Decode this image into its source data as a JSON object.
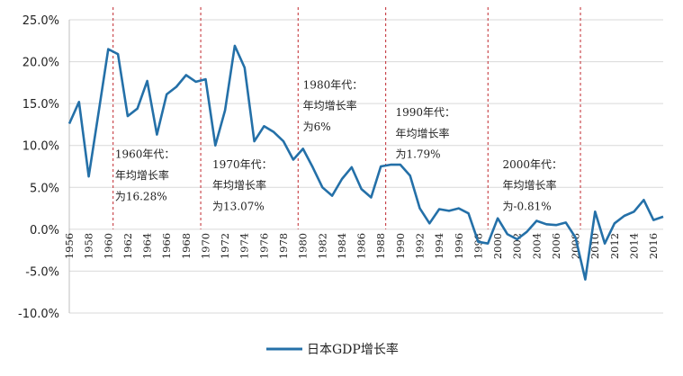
{
  "chart_data": {
    "type": "line",
    "title": "",
    "xlabel": "",
    "ylabel": "",
    "ylim": [
      -0.1,
      0.25
    ],
    "xlim": [
      1956,
      2017
    ],
    "ytick_labels": [
      "25.0%",
      "20.0%",
      "15.0%",
      "10.0%",
      "5.0%",
      "0.0%",
      "-5.0%",
      "-10.0%"
    ],
    "ytick_values": [
      0.25,
      0.2,
      0.15,
      0.1,
      0.05,
      0.0,
      -0.05,
      -0.1
    ],
    "xtick_labels": [
      "1956",
      "1958",
      "1960",
      "1962",
      "1964",
      "1966",
      "1968",
      "1970",
      "1972",
      "1974",
      "1976",
      "1978",
      "1980",
      "1982",
      "1984",
      "1986",
      "1988",
      "1990",
      "1992",
      "1994",
      "1996",
      "1998",
      "2000",
      "2002",
      "2004",
      "2006",
      "2008",
      "2010",
      "2012",
      "2014",
      "2016"
    ],
    "grid": "horizontal",
    "legend_position": "bottom-center",
    "colors": {
      "line": "#2470a8",
      "divider": "#c0272d",
      "grid": "#d9d9d9"
    },
    "series": [
      {
        "name": "日本GDP增长率",
        "x": [
          1956,
          1957,
          1958,
          1959,
          1960,
          1961,
          1962,
          1963,
          1964,
          1965,
          1966,
          1967,
          1968,
          1969,
          1970,
          1971,
          1972,
          1973,
          1974,
          1975,
          1976,
          1977,
          1978,
          1979,
          1980,
          1981,
          1982,
          1983,
          1984,
          1985,
          1986,
          1987,
          1988,
          1989,
          1990,
          1991,
          1992,
          1993,
          1994,
          1995,
          1996,
          1997,
          1998,
          1999,
          2000,
          2001,
          2002,
          2003,
          2004,
          2005,
          2006,
          2007,
          2008,
          2009,
          2010,
          2011,
          2012,
          2013,
          2014,
          2015,
          2016,
          2017
        ],
        "values": [
          0.126,
          0.152,
          0.063,
          0.139,
          0.215,
          0.209,
          0.135,
          0.144,
          0.177,
          0.113,
          0.161,
          0.17,
          0.184,
          0.176,
          0.179,
          0.1,
          0.142,
          0.219,
          0.193,
          0.105,
          0.123,
          0.116,
          0.105,
          0.083,
          0.096,
          0.074,
          0.05,
          0.04,
          0.06,
          0.074,
          0.048,
          0.038,
          0.075,
          0.077,
          0.077,
          0.064,
          0.025,
          0.007,
          0.024,
          0.022,
          0.025,
          0.019,
          -0.015,
          -0.017,
          0.013,
          -0.006,
          -0.012,
          -0.003,
          0.01,
          0.006,
          0.005,
          0.008,
          -0.01,
          -0.06,
          0.021,
          -0.017,
          0.007,
          0.016,
          0.021,
          0.035,
          0.011,
          0.015
        ]
      }
    ],
    "dividers": [
      1960.5,
      1969.5,
      1979.5,
      1988.5,
      1999,
      2008.5
    ],
    "annotations": [
      {
        "x": 1960.7,
        "lines": [
          "1960年代：",
          "年均增长率",
          "为16.28%"
        ],
        "y": [
          0.085,
          0.06,
          0.035
        ]
      },
      {
        "x": 1970.7,
        "lines": [
          "1970年代：",
          "年均增长率",
          "为13.07%"
        ],
        "y": [
          0.073,
          0.048,
          0.023
        ]
      },
      {
        "x": 1980.0,
        "lines": [
          "1980年代：",
          "年均增长率",
          "为6%"
        ],
        "y": [
          0.168,
          0.143,
          0.118
        ]
      },
      {
        "x": 1989.5,
        "lines": [
          "1990年代：",
          "年均增长率",
          "为1.79%"
        ],
        "y": [
          0.135,
          0.11,
          0.085
        ]
      },
      {
        "x": 2000.5,
        "lines": [
          "2000年代：",
          "年均增长率",
          "为-0.81%"
        ],
        "y": [
          0.073,
          0.048,
          0.023
        ]
      }
    ]
  }
}
